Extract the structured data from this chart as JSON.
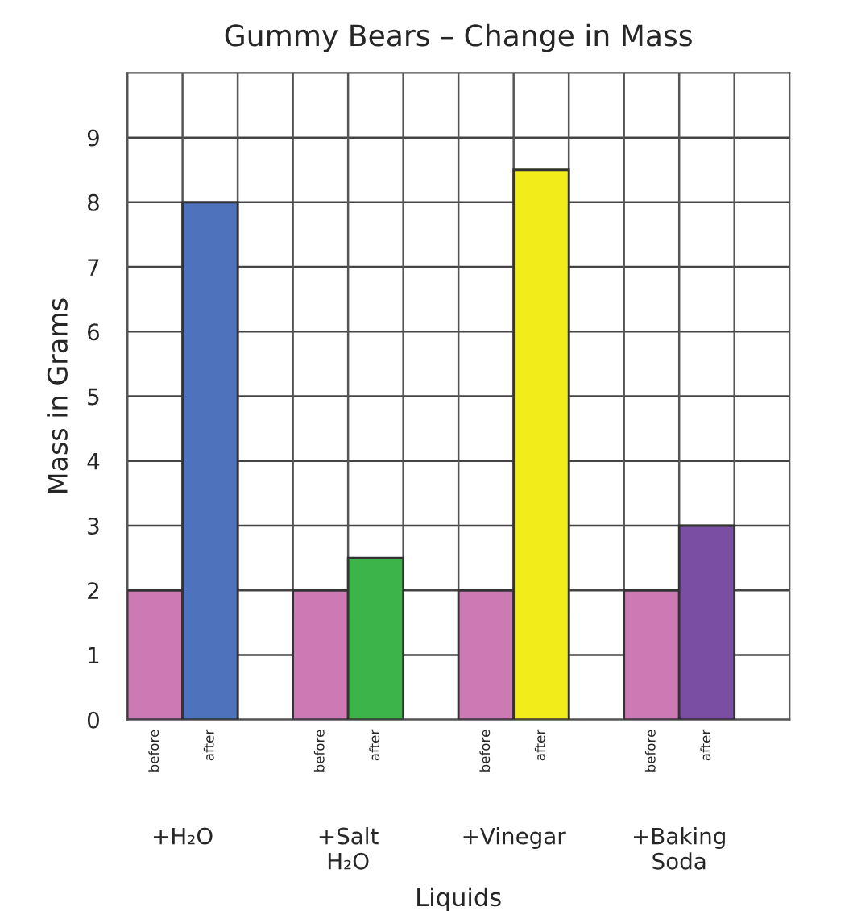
{
  "chart_data": {
    "type": "bar",
    "title": "Gummy Bears – Change in Mass",
    "xlabel": "Liquids",
    "ylabel": "Mass in Grams",
    "categories": [
      "+H₂O",
      "+Salt\nH₂O",
      "+Vinegar",
      "+Baking\nSoda"
    ],
    "series": [
      {
        "name": "before",
        "color": "#cc79b4",
        "values": [
          2,
          2,
          2,
          2
        ]
      },
      {
        "name": "after",
        "colors": [
          "#4e72bb",
          "#3cb44a",
          "#f2ec1a",
          "#7a4fa3"
        ],
        "values": [
          8,
          2.5,
          8.5,
          3
        ]
      }
    ],
    "ylim": [
      0,
      10
    ],
    "yticks": [
      0,
      1,
      2,
      3,
      4,
      5,
      6,
      7,
      8,
      9
    ],
    "grid": true,
    "legend": false
  }
}
